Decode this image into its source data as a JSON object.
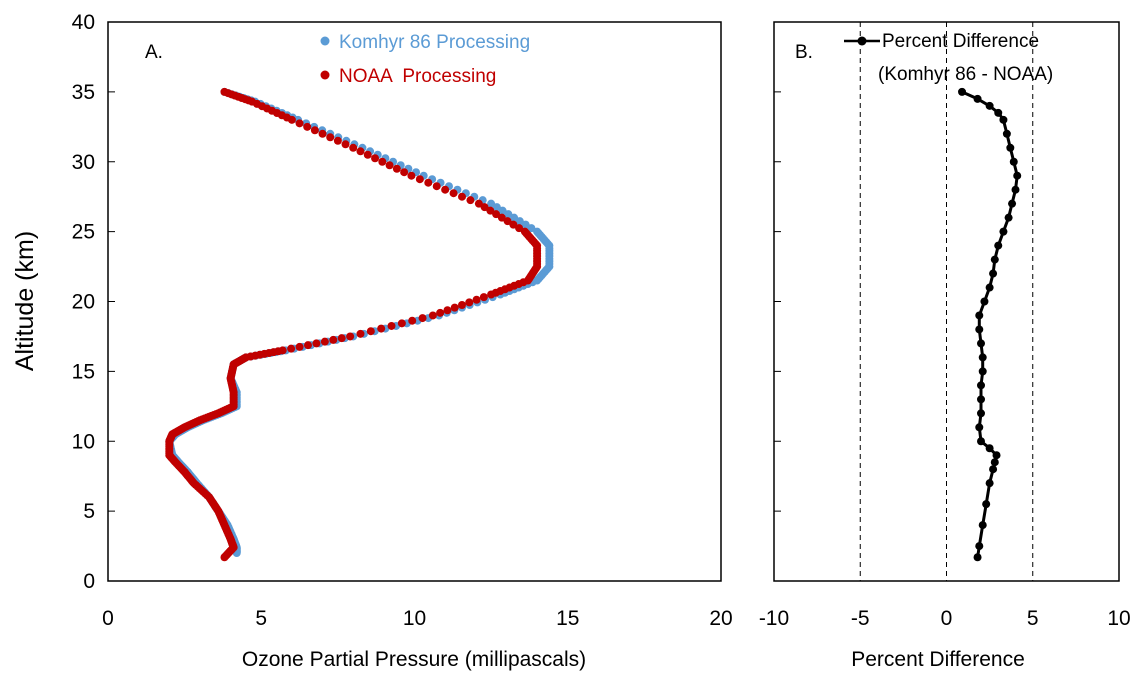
{
  "chart_data": [
    {
      "type": "scatter",
      "panel_label": "A.",
      "xlabel": "Ozone Partial Pressure (millipascals)",
      "ylabel": "Altitude (km)",
      "xlim": [
        0,
        20
      ],
      "ylim": [
        0,
        40
      ],
      "xticks": [
        "0",
        "5",
        "10",
        "15",
        "20"
      ],
      "yticks": [
        "0",
        "5",
        "10",
        "15",
        "20",
        "25",
        "30",
        "35",
        "40"
      ],
      "legend_position": "top-center",
      "series": [
        {
          "name": "Komhyr 86 Processing",
          "color": "#5b9bd5",
          "x": [
            4.2,
            4.2,
            4.1,
            3.9,
            3.6,
            3.3,
            2.9,
            2.6,
            2.3,
            2.1,
            2.0,
            2.2,
            2.6,
            3.1,
            3.7,
            4.2,
            4.2,
            4.0,
            4.1,
            4.5,
            5.8,
            8.0,
            10.8,
            12.8,
            14.0,
            14.4,
            14.4,
            14.0,
            12.5,
            10.3,
            8.3,
            6.2,
            4.8,
            3.8
          ],
          "y": [
            2.0,
            2.4,
            3.0,
            4.0,
            5.0,
            6.0,
            7.0,
            7.8,
            8.5,
            9.0,
            10.0,
            10.5,
            11.0,
            11.5,
            12.0,
            12.5,
            13.5,
            14.5,
            15.5,
            16.0,
            16.5,
            17.5,
            19.0,
            20.5,
            21.5,
            22.5,
            24.0,
            25.0,
            27.0,
            29.0,
            31.0,
            33.0,
            34.3,
            35.0
          ]
        },
        {
          "name": "NOAA  Processing",
          "color": "#c00000",
          "x": [
            3.8,
            4.1,
            4.0,
            3.8,
            3.6,
            3.3,
            2.8,
            2.5,
            2.2,
            2.0,
            2.0,
            2.1,
            2.5,
            3.0,
            3.6,
            4.1,
            4.1,
            4.0,
            4.1,
            4.5,
            5.7,
            7.9,
            10.6,
            12.5,
            13.7,
            14.0,
            14.0,
            13.6,
            12.1,
            9.9,
            8.0,
            6.0,
            4.7,
            3.8
          ],
          "y": [
            1.7,
            2.4,
            3.0,
            4.0,
            5.0,
            6.0,
            7.0,
            7.8,
            8.5,
            9.0,
            10.0,
            10.5,
            11.0,
            11.5,
            12.0,
            12.5,
            13.5,
            14.5,
            15.5,
            16.0,
            16.5,
            17.5,
            19.0,
            20.5,
            21.5,
            22.5,
            24.0,
            25.0,
            27.0,
            29.0,
            31.0,
            33.0,
            34.3,
            35.0
          ]
        }
      ]
    },
    {
      "type": "line",
      "panel_label": "B.",
      "xlabel": "Percent Difference",
      "xlim": [
        -10,
        10
      ],
      "ylim": [
        0,
        40
      ],
      "xticks": [
        "-10",
        "-5",
        "0",
        "5",
        "10"
      ],
      "reference_lines_x": [
        -5,
        0,
        5
      ],
      "legend_position": "top-center",
      "series": [
        {
          "name": "Percent Difference",
          "name_line2": "(Komhyr 86 - NOAA)",
          "color": "#000000",
          "x": [
            1.8,
            1.9,
            2.1,
            2.3,
            2.5,
            2.7,
            2.8,
            2.9,
            2.5,
            2.0,
            1.9,
            2.0,
            2.0,
            2.0,
            2.1,
            2.1,
            2.0,
            1.9,
            1.9,
            2.2,
            2.5,
            2.7,
            2.8,
            3.0,
            3.3,
            3.6,
            3.8,
            4.0,
            4.1,
            3.9,
            3.7,
            3.5,
            3.3,
            3.0,
            2.5,
            1.8,
            0.9
          ],
          "y": [
            1.7,
            2.5,
            4.0,
            5.5,
            7.0,
            8.0,
            8.5,
            9.0,
            9.5,
            10.0,
            11.0,
            12.0,
            13.0,
            14.0,
            15.0,
            16.0,
            17.0,
            18.0,
            19.0,
            20.0,
            21.0,
            22.0,
            23.0,
            24.0,
            25.0,
            26.0,
            27.0,
            28.0,
            29.0,
            30.0,
            31.0,
            32.0,
            33.0,
            33.5,
            34.0,
            34.5,
            35.0
          ]
        }
      ]
    }
  ]
}
